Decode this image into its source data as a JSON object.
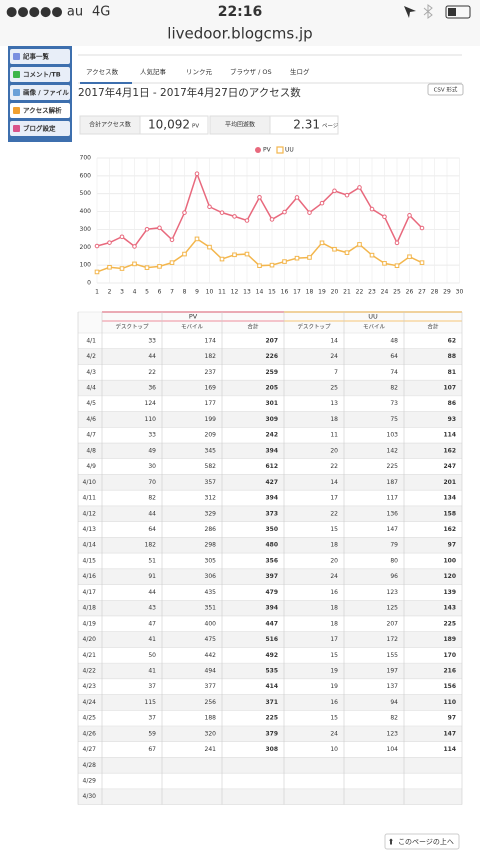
{
  "status_bar": {
    "carrier": "●●●●● au",
    "network": "4G",
    "time": "22:16"
  },
  "url": "livedoor.blogcms.jp",
  "sidebar": [
    "記事一覧",
    "コメント/TB",
    "画像 / ファイル",
    "アクセス解析",
    "ブログ設定"
  ],
  "tabs": [
    "アクセス数",
    "人気記事",
    "リンク元",
    "ブラウザ / OS",
    "生ログ"
  ],
  "heading": "2017年4月1日 - 2017年4月27日のアクセス数",
  "csv_button": "CSV 形式",
  "summary": [
    {
      "label": "合計アクセス数",
      "value": "10,092",
      "unit": "PV"
    },
    {
      "label": "平均回遊数",
      "value": "2.31",
      "unit": "ページ"
    }
  ],
  "chart_data": {
    "type": "line",
    "categories": [
      "1",
      "2",
      "3",
      "4",
      "5",
      "6",
      "7",
      "8",
      "9",
      "10",
      "11",
      "12",
      "13",
      "14",
      "15",
      "16",
      "17",
      "18",
      "19",
      "20",
      "21",
      "22",
      "23",
      "24",
      "25",
      "26",
      "27",
      "28",
      "29",
      "30"
    ],
    "series": [
      {
        "name": "PV",
        "color": "#e8697d",
        "values": [
          207,
          226,
          259,
          205,
          301,
          309,
          242,
          394,
          612,
          427,
          394,
          373,
          350,
          480,
          356,
          397,
          479,
          394,
          447,
          516,
          492,
          535,
          414,
          371,
          225,
          379,
          308,
          null,
          null,
          null
        ]
      },
      {
        "name": "UU",
        "color": "#f3b64d",
        "values": [
          62,
          88,
          81,
          107,
          86,
          93,
          114,
          162,
          247,
          201,
          134,
          158,
          162,
          97,
          100,
          120,
          139,
          143,
          225,
          189,
          170,
          216,
          156,
          110,
          97,
          147,
          114,
          null,
          null,
          null
        ]
      }
    ],
    "ylim": [
      0,
      700
    ],
    "yticks": [
      0,
      100,
      200,
      300,
      400,
      500,
      600,
      700
    ],
    "grid": true,
    "legend": "top"
  },
  "table": {
    "groups": [
      "PV",
      "UU"
    ],
    "columns": [
      "デスクトップ",
      "モバイル",
      "合計"
    ],
    "rows": [
      [
        "4/1",
        33,
        174,
        207,
        14,
        48,
        62
      ],
      [
        "4/2",
        44,
        182,
        226,
        24,
        64,
        88
      ],
      [
        "4/3",
        22,
        237,
        259,
        7,
        74,
        81
      ],
      [
        "4/4",
        36,
        169,
        205,
        25,
        82,
        107
      ],
      [
        "4/5",
        124,
        177,
        301,
        13,
        73,
        86
      ],
      [
        "4/6",
        110,
        199,
        309,
        18,
        75,
        93
      ],
      [
        "4/7",
        33,
        209,
        242,
        11,
        103,
        114
      ],
      [
        "4/8",
        49,
        345,
        394,
        20,
        142,
        162
      ],
      [
        "4/9",
        30,
        582,
        612,
        22,
        225,
        247
      ],
      [
        "4/10",
        70,
        357,
        427,
        14,
        187,
        201
      ],
      [
        "4/11",
        82,
        312,
        394,
        17,
        117,
        134
      ],
      [
        "4/12",
        44,
        329,
        373,
        22,
        136,
        158
      ],
      [
        "4/13",
        64,
        286,
        350,
        15,
        147,
        162
      ],
      [
        "4/14",
        182,
        298,
        480,
        18,
        79,
        97
      ],
      [
        "4/15",
        51,
        305,
        356,
        20,
        80,
        100
      ],
      [
        "4/16",
        91,
        306,
        397,
        24,
        96,
        120
      ],
      [
        "4/17",
        44,
        435,
        479,
        16,
        123,
        139
      ],
      [
        "4/18",
        43,
        351,
        394,
        18,
        125,
        143
      ],
      [
        "4/19",
        47,
        400,
        447,
        18,
        207,
        225
      ],
      [
        "4/20",
        41,
        475,
        516,
        17,
        172,
        189
      ],
      [
        "4/21",
        50,
        442,
        492,
        15,
        155,
        170
      ],
      [
        "4/22",
        41,
        494,
        535,
        19,
        197,
        216
      ],
      [
        "4/23",
        37,
        377,
        414,
        19,
        137,
        156
      ],
      [
        "4/24",
        115,
        256,
        371,
        16,
        94,
        110
      ],
      [
        "4/25",
        37,
        188,
        225,
        15,
        82,
        97
      ],
      [
        "4/26",
        59,
        320,
        379,
        24,
        123,
        147
      ],
      [
        "4/27",
        67,
        241,
        308,
        10,
        104,
        114
      ],
      [
        "4/28"
      ],
      [
        "4/29"
      ],
      [
        "4/30"
      ]
    ]
  },
  "back_to_top": "このページの上へ"
}
